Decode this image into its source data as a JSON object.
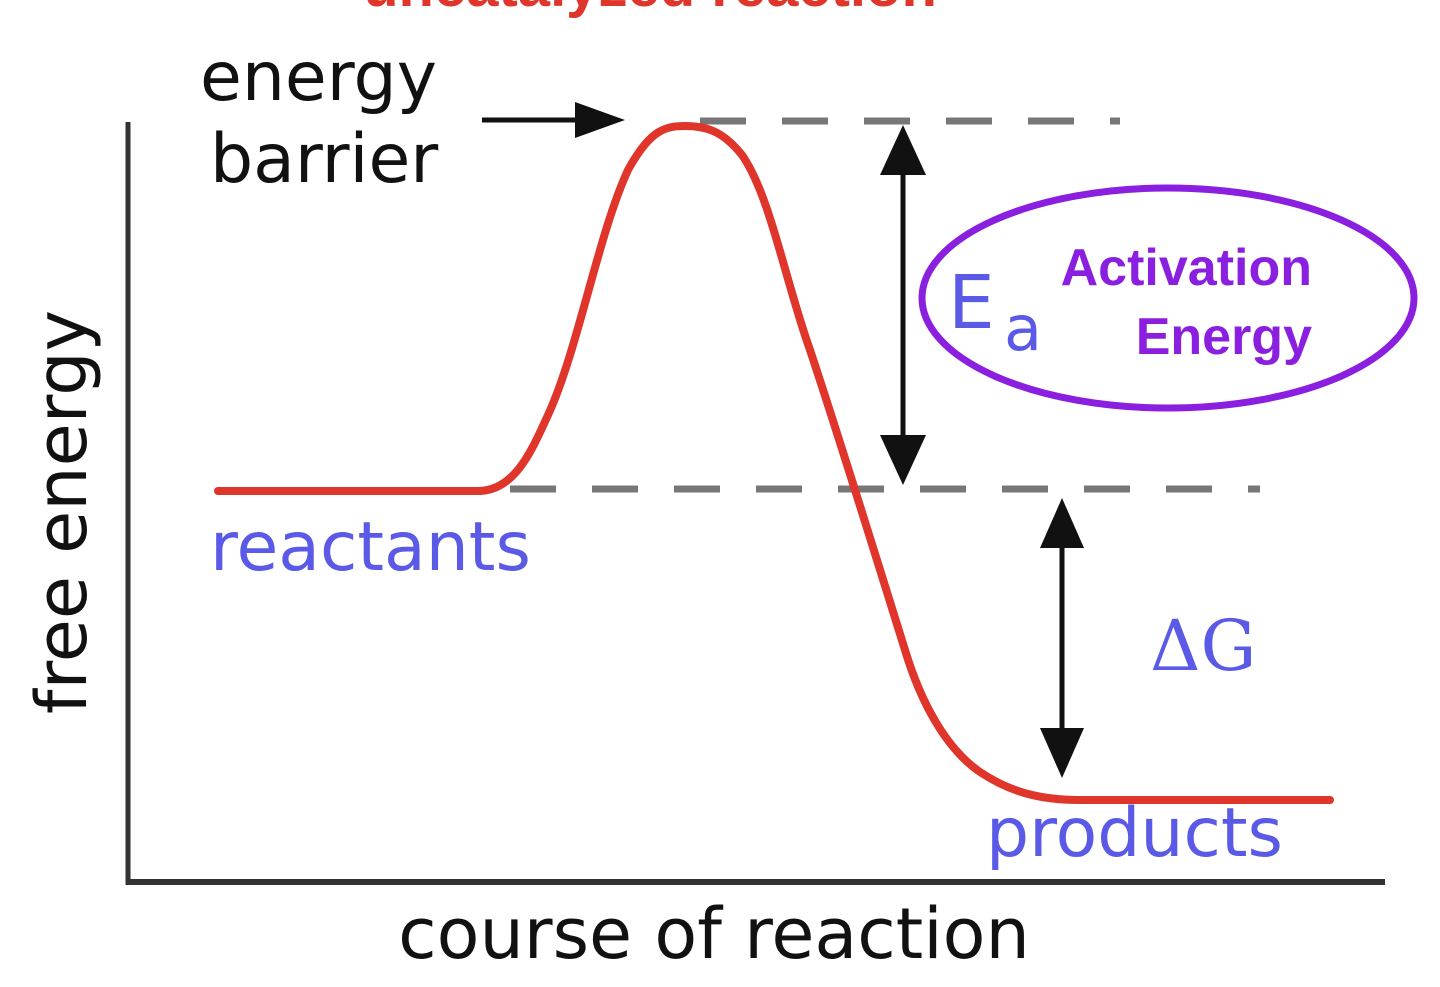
{
  "diagram": {
    "title_fragment": "uncatalyzed reaction",
    "axis_y_label": "free energy",
    "axis_x_label": "course of reaction",
    "barrier_label_line1": "energy",
    "barrier_label_line2": "barrier",
    "reactants_label": "reactants",
    "products_label": "products",
    "ea_symbol": "E",
    "ea_subscript": "a",
    "ea_note_line1": "Activation",
    "ea_note_line2": "Energy",
    "delta_g_label": "ΔG"
  },
  "colors": {
    "curve": "#e0352b",
    "axis": "#333333",
    "dashes": "#777777",
    "species_text": "#5a5ae6",
    "note": "#8a1fe0",
    "title": "#e0352b",
    "black": "#111111"
  }
}
